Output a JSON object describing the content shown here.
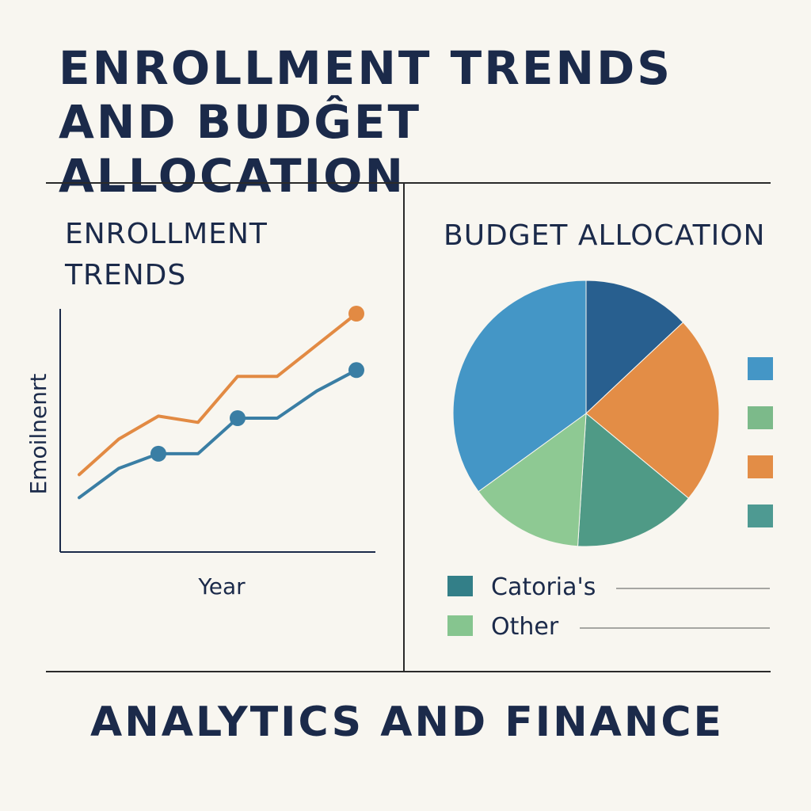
{
  "header": {
    "title_line1": "ENROLLMENT TRENDS",
    "title_line2": "AND BUDĜET ALLOCATION"
  },
  "footer": {
    "text": "ANALYTICS AND FINANCE"
  },
  "colors": {
    "orange": "#e28a43",
    "blue": "#3a7ea4",
    "pie_light_blue": "#4496c6",
    "pie_dark_blue": "#285f8f",
    "pie_orange": "#e38d46",
    "pie_teal": "#4f9a86",
    "pie_light_green": "#8ec993",
    "legend_teal": "#337f88",
    "legend_green": "#86c58f",
    "swatch_green": "#7cba8a",
    "swatch_teal": "#4e9a92"
  },
  "chart_data": [
    {
      "type": "line",
      "title_line1": "ENROLLMENT",
      "title_line2": "TRENDS",
      "xlabel": "Year",
      "ylabel": "Emoilnenrt",
      "x": [
        0,
        1,
        2,
        3,
        4,
        5,
        6,
        7
      ],
      "xlim": [
        0,
        7.4
      ],
      "ylim": [
        0,
        100
      ],
      "series": [
        {
          "values": [
            23,
            40,
            51,
            48,
            70,
            70,
            85,
            100
          ],
          "color": "orange",
          "markers": [
            7
          ]
        },
        {
          "values": [
            12,
            26,
            33,
            33,
            50,
            50,
            63,
            73
          ],
          "color": "blue",
          "markers": [
            2,
            4,
            7
          ]
        }
      ]
    },
    {
      "type": "pie",
      "title": "BUDGET ALLOCATION",
      "slices": [
        {
          "value": 13,
          "color": "pie_dark_blue"
        },
        {
          "value": 23,
          "color": "pie_orange"
        },
        {
          "value": 15,
          "color": "pie_teal"
        },
        {
          "value": 14,
          "color": "pie_light_green"
        },
        {
          "value": 35,
          "color": "pie_light_blue"
        }
      ],
      "swatches": [
        "pie_light_blue",
        "swatch_green",
        "pie_orange",
        "swatch_teal"
      ],
      "legend": [
        {
          "label": "Catoria's",
          "color": "legend_teal"
        },
        {
          "label": "Other",
          "color": "legend_green"
        }
      ]
    }
  ]
}
